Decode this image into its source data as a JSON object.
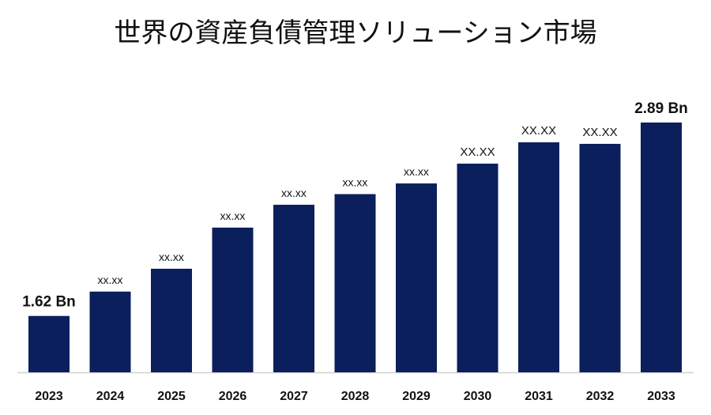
{
  "chart_data": {
    "type": "bar",
    "title": "世界の資産負債管理ソリューション市場",
    "categories": [
      "2023",
      "2024",
      "2025",
      "2026",
      "2027",
      "2028",
      "2029",
      "2030",
      "2031",
      "2032",
      "2033"
    ],
    "values": [
      1.62,
      1.78,
      1.93,
      2.2,
      2.35,
      2.42,
      2.49,
      2.62,
      2.76,
      2.75,
      2.89
    ],
    "data_labels": [
      "1.62 Bn",
      "xx.xx",
      "xx.xx",
      "xx.xx",
      "xx.xx",
      "xx.xx",
      "xx.xx",
      "XX.XX",
      "XX.XX",
      "XX.XX",
      "2.89 Bn"
    ],
    "bar_color": "#0b1f5c",
    "ylim": [
      1.25,
      3.2
    ],
    "grid": false,
    "legend": "none",
    "xlabel": "",
    "ylabel": ""
  }
}
